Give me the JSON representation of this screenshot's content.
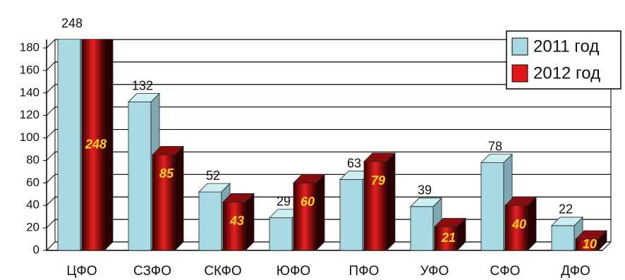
{
  "chart_data": {
    "type": "bar3d",
    "categories": [
      "ЦФО",
      "СЗФО",
      "СКФО",
      "ЮФО",
      "ПФО",
      "УФО",
      "СФО",
      "ДФО"
    ],
    "series": [
      {
        "name": "2011 год",
        "color": "#a9d9e3",
        "values": [
          248,
          132,
          52,
          29,
          63,
          39,
          78,
          22
        ]
      },
      {
        "name": "2012 год",
        "color": "#e01818",
        "values": [
          248,
          85,
          43,
          60,
          79,
          21,
          40,
          10
        ]
      }
    ],
    "ylim": [
      0,
      180
    ],
    "yticks": [
      0,
      20,
      40,
      60,
      80,
      100,
      120,
      140,
      160,
      180
    ],
    "grid": true,
    "legend": "top-right"
  }
}
